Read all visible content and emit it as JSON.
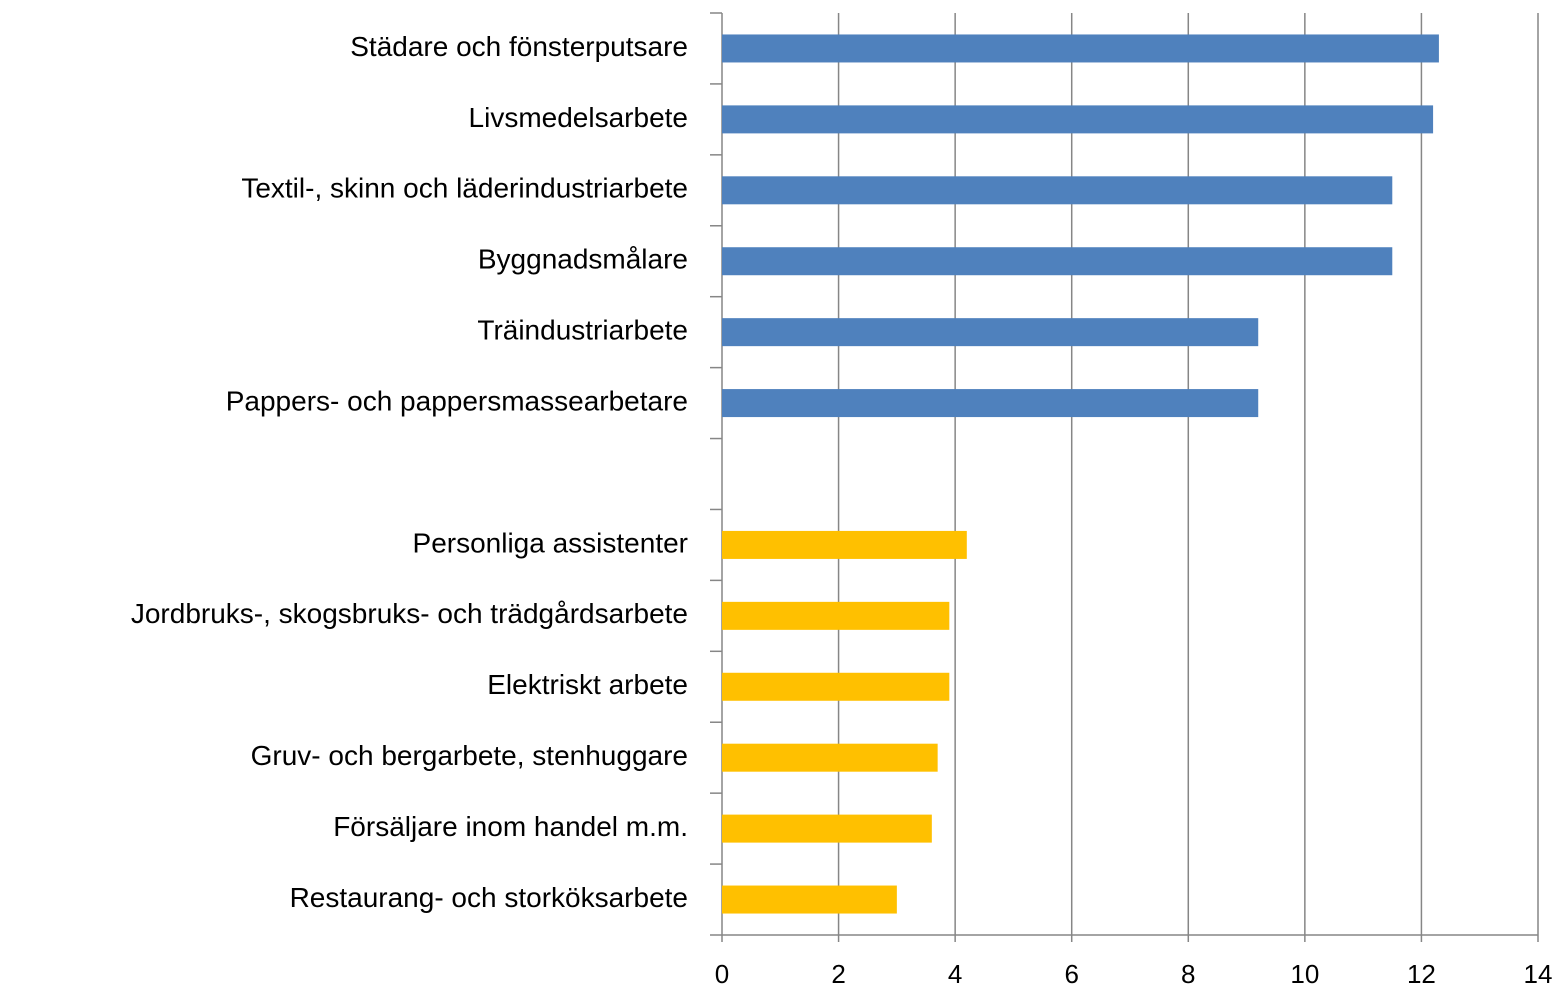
{
  "chart_data": {
    "type": "barh",
    "categories": [
      "Städare och fönsterputsare",
      "Livsmedelsarbete",
      "Textil-, skinn och läderindustriarbete",
      "Byggnadsmålare",
      "Träindustriarbete",
      "Pappers- och pappersmassearbetare",
      null,
      "Personliga assistenter",
      "Jordbruks-, skogsbruks- och trädgårdsarbete",
      "Elektriskt arbete",
      "Gruv- och bergarbete, stenhuggare",
      "Försäljare inom handel m.m.",
      "Restaurang- och storköksarbete"
    ],
    "values": [
      12.3,
      12.2,
      11.5,
      11.5,
      9.2,
      9.2,
      null,
      4.2,
      3.9,
      3.9,
      3.7,
      3.6,
      3.0
    ],
    "colors": [
      "#4f81bd",
      "#4f81bd",
      "#4f81bd",
      "#4f81bd",
      "#4f81bd",
      "#4f81bd",
      null,
      "#ffc000",
      "#ffc000",
      "#ffc000",
      "#ffc000",
      "#ffc000",
      "#ffc000"
    ],
    "xlim": [
      0,
      14
    ],
    "xticks": [
      0,
      2,
      4,
      6,
      8,
      10,
      12,
      14
    ],
    "grid": true
  }
}
